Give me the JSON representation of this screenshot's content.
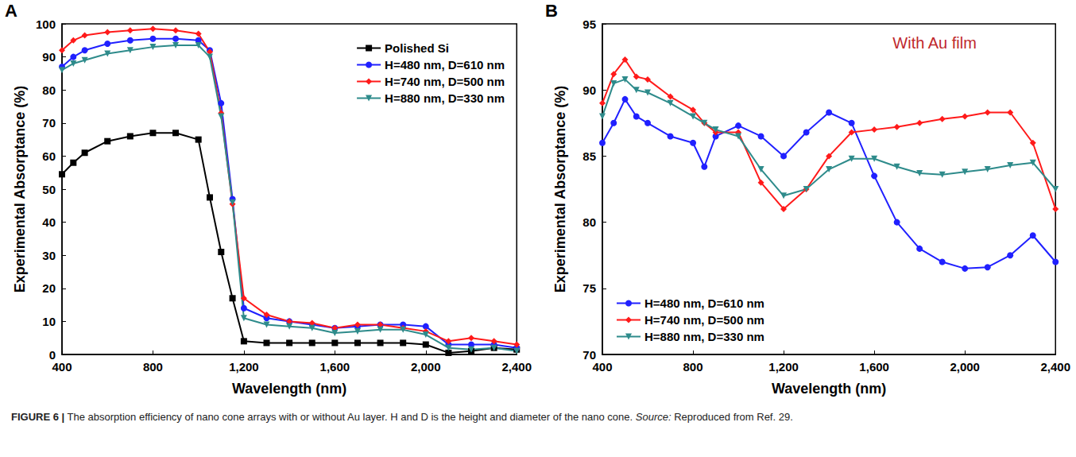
{
  "chart_data": [
    {
      "type": "line",
      "title": "A",
      "x_label": "Wavelength (nm)",
      "y_label": "Experimental Absorptance (%)",
      "x": [
        400,
        450,
        500,
        600,
        700,
        800,
        900,
        1000,
        1050,
        1100,
        1150,
        1200,
        1300,
        1400,
        1500,
        1600,
        1700,
        1800,
        1900,
        2000,
        2100,
        2200,
        2300,
        2400
      ],
      "series": [
        {
          "name": "Polished Si",
          "color": "#000000",
          "marker": "square",
          "line_style": "solid",
          "values": [
            54.5,
            58,
            61,
            64.5,
            66,
            67,
            67,
            65,
            47.5,
            31,
            17,
            4,
            3.5,
            3.5,
            3.5,
            3.5,
            3.5,
            3.5,
            3.5,
            3,
            0.5,
            1,
            2,
            1.5
          ]
        },
        {
          "name": "H=480 nm, D=610 nm",
          "color": "#2020ff",
          "marker": "circle",
          "line_style": "solid",
          "values": [
            87,
            90,
            92,
            94,
            95,
            95.5,
            95.5,
            95,
            92,
            76,
            47,
            14,
            11,
            10,
            9,
            8,
            8.5,
            9,
            9,
            8.5,
            3,
            3,
            3,
            2
          ]
        },
        {
          "name": "H=740 nm, D=500 nm",
          "color": "#ff1a1a",
          "marker": "diamond",
          "line_style": "solid",
          "values": [
            92,
            95,
            96.5,
            97.5,
            98,
            98.5,
            98,
            97,
            91.5,
            73,
            45.5,
            17,
            12,
            10,
            9.5,
            8,
            9,
            9,
            8,
            7,
            4,
            5,
            4,
            3
          ]
        },
        {
          "name": "H=880 nm, D=330 nm",
          "color": "#2e8b8b",
          "marker": "triangle_down",
          "line_style": "solid",
          "values": [
            86,
            88,
            89,
            91,
            92,
            93,
            93.5,
            93.5,
            90,
            72,
            46,
            11,
            9,
            8.5,
            8,
            6.5,
            7,
            7.5,
            7.5,
            6,
            2,
            1.5,
            2,
            1
          ]
        }
      ],
      "xlim": [
        400,
        2400
      ],
      "xticks": [
        400,
        800,
        1200,
        1600,
        2000,
        2400
      ],
      "ylim": [
        0,
        100
      ],
      "yticks": [
        0,
        10,
        20,
        30,
        40,
        50,
        60,
        70,
        80,
        90,
        100
      ],
      "grid": false,
      "legend": "top-right"
    },
    {
      "type": "line",
      "title": "B",
      "x_label": "Wavelength (nm)",
      "y_label": "Experimental Absorptance (%)",
      "annotations": [
        {
          "text": "With Au film",
          "color": "#c0282d"
        }
      ],
      "x": [
        400,
        450,
        500,
        550,
        600,
        700,
        800,
        850,
        900,
        1000,
        1100,
        1200,
        1300,
        1400,
        1500,
        1600,
        1700,
        1800,
        1900,
        2000,
        2100,
        2200,
        2300,
        2400
      ],
      "series": [
        {
          "name": "H=480 nm, D=610 nm",
          "color": "#2020ff",
          "marker": "circle",
          "line_style": "solid",
          "values": [
            86,
            87.5,
            89.3,
            88,
            87.5,
            86.5,
            86,
            84.2,
            86.5,
            87.3,
            86.5,
            85,
            86.8,
            88.3,
            87.5,
            83.5,
            80,
            78,
            77,
            76.5,
            76.6,
            77.5,
            79,
            77
          ]
        },
        {
          "name": "H=740 nm, D=500 nm",
          "color": "#ff1a1a",
          "marker": "diamond",
          "line_style": "solid",
          "values": [
            89,
            91.2,
            92.3,
            91,
            90.8,
            89.5,
            88.5,
            87.5,
            86.8,
            86.8,
            83,
            81,
            82.5,
            85,
            86.8,
            87,
            87.2,
            87.5,
            87.8,
            88,
            88.3,
            88.3,
            86,
            81
          ]
        },
        {
          "name": "H=880 nm, D=330 nm",
          "color": "#2e8b8b",
          "marker": "triangle_down",
          "line_style": "solid",
          "values": [
            88,
            90.5,
            90.8,
            90,
            89.8,
            89,
            88,
            87.5,
            87,
            86.5,
            84,
            82,
            82.5,
            84,
            84.8,
            84.8,
            84.2,
            83.7,
            83.6,
            83.8,
            84,
            84.3,
            84.5,
            82.5
          ]
        }
      ],
      "xlim": [
        400,
        2400
      ],
      "xticks": [
        400,
        800,
        1200,
        1600,
        2000,
        2400
      ],
      "ylim": [
        70,
        95
      ],
      "yticks": [
        70,
        75,
        80,
        85,
        90,
        95
      ],
      "grid": false,
      "legend": "bottom-left"
    }
  ],
  "caption": {
    "label": "FIGURE 6 |",
    "text": "The absorption efficiency of nano cone arrays with or without Au layer. H and D is the height and diameter of the nano cone.",
    "source_label": "Source:",
    "source_text": "Reproduced from Ref. 29."
  }
}
